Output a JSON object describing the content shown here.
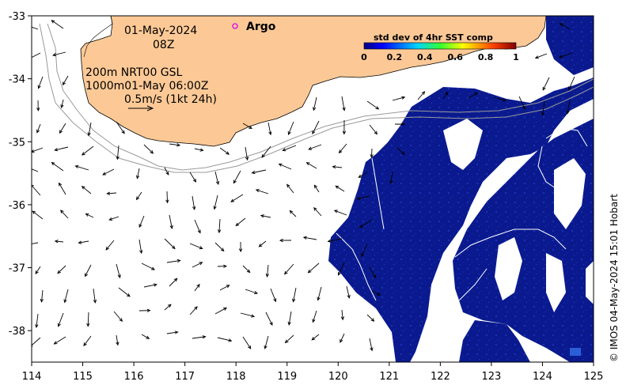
{
  "map": {
    "x_ticks": [
      "114",
      "115",
      "116",
      "117",
      "118",
      "119",
      "120",
      "121",
      "122",
      "123",
      "124",
      "125"
    ],
    "y_ticks": [
      "-33",
      "-34",
      "-35",
      "-36",
      "-37",
      "-38"
    ],
    "lon_range": [
      114,
      125
    ],
    "lat_range": [
      -38.5,
      -33
    ]
  },
  "annotations": {
    "date": "01-May-2024",
    "hour": "08Z",
    "contour_line1": "200m  NRT00 GSL",
    "contour_line2": "1000m01-May 06:00Z",
    "scale_text": "0.5m/s (1kt 24h)",
    "argo_label": "Argo"
  },
  "colorbar": {
    "title": "std dev of 4hr SST comp",
    "ticks": [
      "0",
      "0.2",
      "0.4",
      "0.6",
      "0.8",
      "1"
    ]
  },
  "credit": "© IMOS 04-May-2024 15:01 Hobart",
  "colors": {
    "land": "#FCC996",
    "sst_low": "#0A1A8E",
    "contour": "#9a9a9a",
    "argo": "#e020e0"
  }
}
